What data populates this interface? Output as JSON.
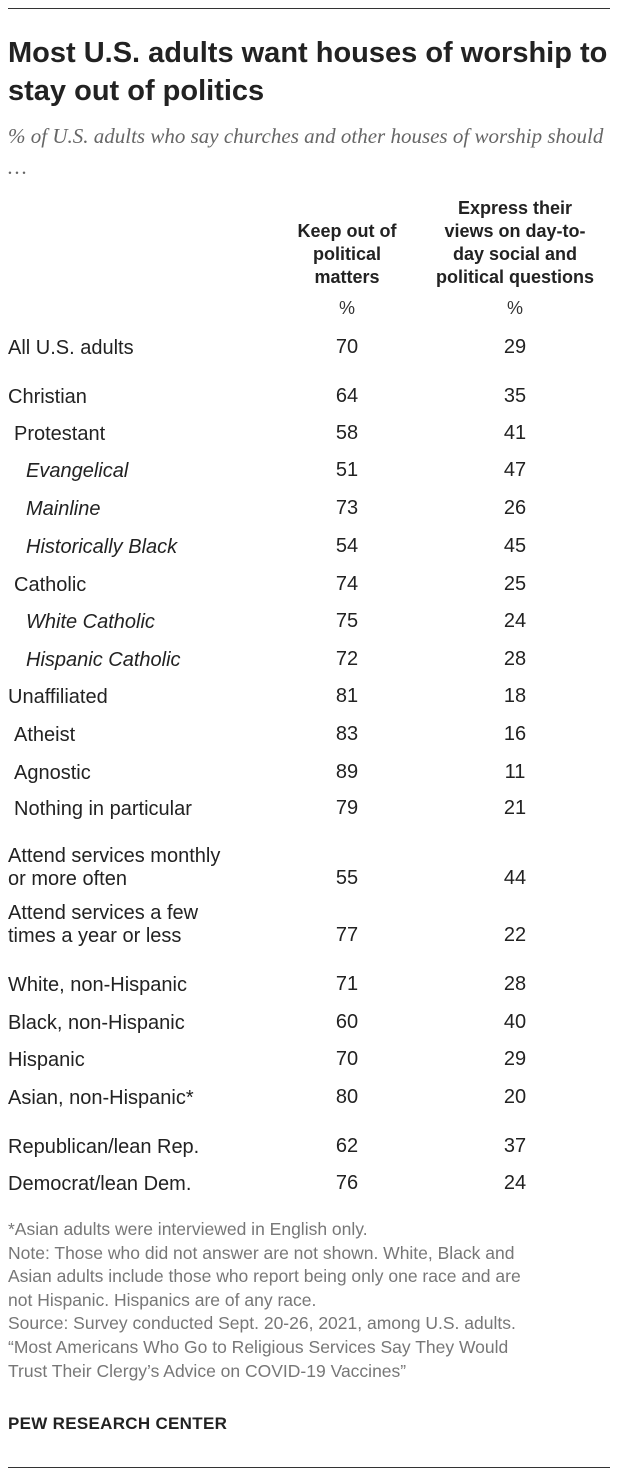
{
  "header": {
    "title": "Most U.S. adults want houses of worship to stay out of politics",
    "subtitle": "% of U.S. adults who say churches and other houses of worship should …"
  },
  "chart_data": {
    "type": "table",
    "columns": [
      {
        "label_lines": [
          "Keep out of",
          "political",
          "matters"
        ],
        "unit": "%"
      },
      {
        "label_lines": [
          "Express their",
          "views on day-to-",
          "day social and",
          "political questions"
        ],
        "unit": "%"
      }
    ],
    "rows": [
      {
        "lines": [
          "All U.S. adults"
        ],
        "values": [
          70,
          29
        ],
        "indent": 0,
        "italic": false
      },
      {
        "lines": [
          "Christian"
        ],
        "values": [
          64,
          35
        ],
        "indent": 0,
        "italic": false
      },
      {
        "lines": [
          "Protestant"
        ],
        "values": [
          58,
          41
        ],
        "indent": 1,
        "italic": false
      },
      {
        "lines": [
          "Evangelical"
        ],
        "values": [
          51,
          47
        ],
        "indent": 2,
        "italic": true
      },
      {
        "lines": [
          "Mainline"
        ],
        "values": [
          73,
          26
        ],
        "indent": 2,
        "italic": true
      },
      {
        "lines": [
          "Historically Black"
        ],
        "values": [
          54,
          45
        ],
        "indent": 2,
        "italic": true
      },
      {
        "lines": [
          "Catholic"
        ],
        "values": [
          74,
          25
        ],
        "indent": 1,
        "italic": false
      },
      {
        "lines": [
          "White Catholic"
        ],
        "values": [
          75,
          24
        ],
        "indent": 2,
        "italic": true
      },
      {
        "lines": [
          "Hispanic Catholic"
        ],
        "values": [
          72,
          28
        ],
        "indent": 2,
        "italic": true
      },
      {
        "lines": [
          "Unaffiliated"
        ],
        "values": [
          81,
          18
        ],
        "indent": 0,
        "italic": false
      },
      {
        "lines": [
          "Atheist"
        ],
        "values": [
          83,
          16
        ],
        "indent": 1,
        "italic": false
      },
      {
        "lines": [
          "Agnostic"
        ],
        "values": [
          89,
          11
        ],
        "indent": 1,
        "italic": false
      },
      {
        "lines": [
          "Nothing in particular"
        ],
        "values": [
          79,
          21
        ],
        "indent": 1,
        "italic": false
      },
      {
        "lines": [
          "Attend services monthly",
          "or more often"
        ],
        "values": [
          55,
          44
        ],
        "indent": 0,
        "italic": false
      },
      {
        "lines": [
          "Attend services a few",
          "times a year or less"
        ],
        "values": [
          77,
          22
        ],
        "indent": 0,
        "italic": false
      },
      {
        "lines": [
          "White, non-Hispanic"
        ],
        "values": [
          71,
          28
        ],
        "indent": 0,
        "italic": false
      },
      {
        "lines": [
          "Black, non-Hispanic"
        ],
        "values": [
          60,
          40
        ],
        "indent": 0,
        "italic": false
      },
      {
        "lines": [
          "Hispanic"
        ],
        "values": [
          70,
          29
        ],
        "indent": 0,
        "italic": false
      },
      {
        "lines": [
          "Asian, non-Hispanic*"
        ],
        "values": [
          80,
          20
        ],
        "indent": 0,
        "italic": false
      },
      {
        "lines": [
          "Republican/lean Rep."
        ],
        "values": [
          62,
          37
        ],
        "indent": 0,
        "italic": false
      },
      {
        "lines": [
          "Democrat/lean Dem."
        ],
        "values": [
          76,
          24
        ],
        "indent": 0,
        "italic": false
      }
    ]
  },
  "footer": {
    "note_lines": [
      "*Asian adults were interviewed in English only.",
      "Note: Those who did not answer are not shown. White, Black and",
      "Asian adults include those who report being only one race and are",
      "not Hispanic. Hispanics are of any race.",
      "Source: Survey conducted Sept. 20-26, 2021, among U.S. adults.",
      "“Most Americans Who Go to Religious Services Say They Would",
      "Trust Their Clergy’s Advice on COVID-19 Vaccines”"
    ],
    "brand": "PEW RESEARCH CENTER"
  }
}
